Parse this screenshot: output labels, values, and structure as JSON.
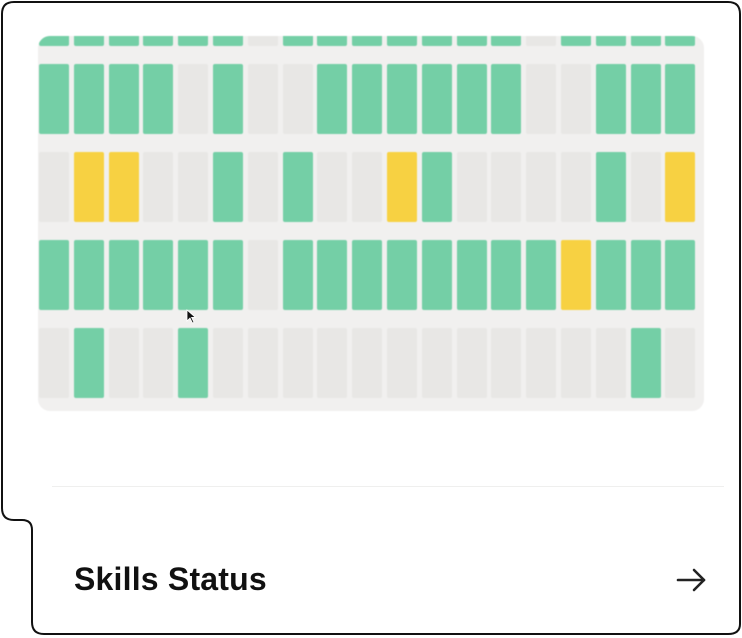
{
  "card": {
    "title": "Skills Status",
    "arrow_icon": "arrow-right-icon"
  },
  "colors": {
    "on": "#74cfa6",
    "off": "#e8e7e5",
    "warn": "#f7d142",
    "text": "#111111",
    "border": "#111111"
  },
  "status_grid": {
    "rows": [
      [
        "on",
        "on",
        "on",
        "on",
        "on",
        "on",
        "off",
        "on",
        "on",
        "on",
        "on",
        "on",
        "on",
        "on",
        "off",
        "on",
        "on",
        "on",
        "on"
      ],
      [
        "on",
        "on",
        "on",
        "on",
        "off",
        "on",
        "off",
        "off",
        "on",
        "on",
        "on",
        "on",
        "on",
        "on",
        "off",
        "off",
        "on",
        "on",
        "on"
      ],
      [
        "off",
        "warn",
        "warn",
        "off",
        "off",
        "on",
        "off",
        "on",
        "off",
        "off",
        "warn",
        "on",
        "off",
        "off",
        "off",
        "off",
        "on",
        "off",
        "warn"
      ],
      [
        "on",
        "on",
        "on",
        "on",
        "on",
        "on",
        "off",
        "on",
        "on",
        "on",
        "on",
        "on",
        "on",
        "on",
        "on",
        "warn",
        "on",
        "on",
        "on"
      ],
      [
        "off",
        "on",
        "off",
        "off",
        "on",
        "off",
        "off",
        "off",
        "off",
        "off",
        "off",
        "off",
        "off",
        "off",
        "off",
        "off",
        "off",
        "on",
        "off"
      ]
    ]
  }
}
